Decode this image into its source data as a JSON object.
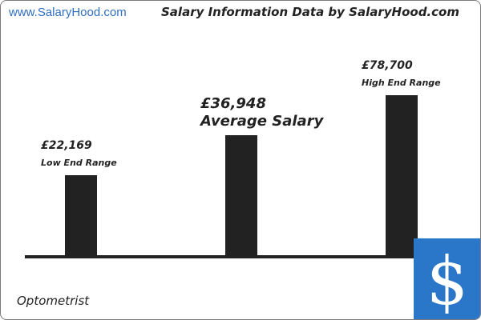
{
  "header": {
    "site": "www.SalaryHood.com",
    "title": "Salary Information Data by SalaryHood.com"
  },
  "occupation": "Optometrist",
  "chart_data": {
    "type": "bar",
    "categories": [
      "Low End Range",
      "Average Salary",
      "High End Range"
    ],
    "values": [
      22169,
      36948,
      78700
    ],
    "value_labels": [
      "£22,169",
      "£36,948",
      "£78,700"
    ],
    "title": "Salary Information Data by SalaryHood.com",
    "xlabel": "",
    "ylabel": "",
    "colors": {
      "bar": "#222222",
      "axis": "#222222",
      "accent": "#2a76c8"
    },
    "grid": false
  },
  "icons": {
    "corner": "dollar-sign-icon"
  }
}
